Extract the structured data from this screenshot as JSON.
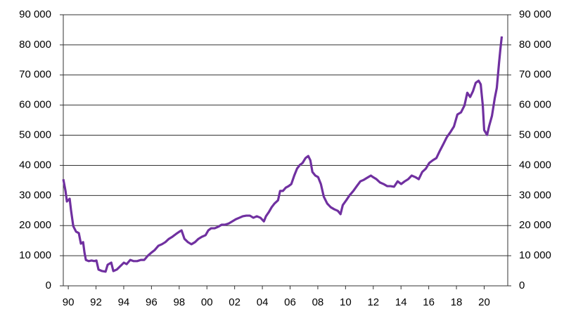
{
  "chart_data": {
    "type": "line",
    "x": [
      1989.64,
      1989.8,
      1989.9,
      1990.1,
      1990.2,
      1990.36,
      1990.56,
      1990.76,
      1990.91,
      1991.07,
      1991.17,
      1991.27,
      1991.47,
      1991.68,
      1991.88,
      1992.03,
      1992.18,
      1992.44,
      1992.69,
      1992.84,
      1993.1,
      1993.25,
      1993.5,
      1993.81,
      1994.01,
      1994.21,
      1994.47,
      1994.72,
      1994.97,
      1995.23,
      1995.48,
      1995.74,
      1995.99,
      1996.24,
      1996.5,
      1996.75,
      1997.0,
      1997.26,
      1997.51,
      1997.77,
      1998.02,
      1998.17,
      1998.38,
      1998.63,
      1998.88,
      1999.14,
      1999.39,
      1999.64,
      1999.9,
      2000.1,
      2000.3,
      2000.56,
      2000.81,
      2001.07,
      2001.32,
      2001.57,
      2001.83,
      2002.08,
      2002.34,
      2002.59,
      2002.84,
      2003.1,
      2003.35,
      2003.6,
      2003.86,
      2004.11,
      2004.26,
      2004.47,
      2004.67,
      2004.87,
      2005.13,
      2005.28,
      2005.48,
      2005.69,
      2005.89,
      2006.09,
      2006.3,
      2006.5,
      2006.7,
      2006.9,
      2007.11,
      2007.31,
      2007.46,
      2007.61,
      2007.82,
      2008.02,
      2008.22,
      2008.43,
      2008.68,
      2008.93,
      2009.19,
      2009.44,
      2009.64,
      2009.8,
      2010.05,
      2010.3,
      2010.56,
      2010.81,
      2011.07,
      2011.32,
      2011.57,
      2011.83,
      2011.98,
      2012.23,
      2012.49,
      2012.74,
      2013.0,
      2013.25,
      2013.5,
      2013.76,
      2014.01,
      2014.27,
      2014.52,
      2014.77,
      2015.03,
      2015.28,
      2015.53,
      2015.79,
      2016.04,
      2016.3,
      2016.55,
      2016.8,
      2017.06,
      2017.31,
      2017.56,
      2017.82,
      2018.07,
      2018.33,
      2018.58,
      2018.78,
      2018.99,
      2019.19,
      2019.39,
      2019.6,
      2019.75,
      2019.9,
      2020.0,
      2020.21,
      2020.36,
      2020.56,
      2020.76,
      2020.91,
      2021.07,
      2021.17,
      2021.27
    ],
    "series": [
      {
        "color": "#7030a0",
        "values": [
          35400,
          31500,
          28000,
          28900,
          25000,
          19800,
          18000,
          17500,
          14000,
          14500,
          11000,
          8600,
          8200,
          8400,
          8200,
          8400,
          5400,
          4900,
          4700,
          7000,
          7700,
          4900,
          5400,
          6800,
          7700,
          7200,
          8600,
          8200,
          8200,
          8600,
          8600,
          10000,
          11000,
          11900,
          13300,
          13800,
          14500,
          15600,
          16300,
          17200,
          18000,
          18400,
          15600,
          14500,
          13800,
          14500,
          15600,
          16300,
          16800,
          18400,
          19100,
          19100,
          19600,
          20300,
          20300,
          20700,
          21400,
          22100,
          22600,
          23100,
          23300,
          23300,
          22600,
          23100,
          22600,
          21400,
          23100,
          24500,
          26100,
          27300,
          28400,
          31500,
          31500,
          32600,
          33100,
          33800,
          36600,
          38900,
          40100,
          40800,
          42400,
          43100,
          41700,
          37800,
          36600,
          36100,
          33800,
          29600,
          27300,
          26100,
          25400,
          24900,
          23800,
          26800,
          28400,
          30100,
          31500,
          33100,
          34700,
          35200,
          35900,
          36600,
          36100,
          35400,
          34300,
          33800,
          33100,
          33100,
          32900,
          34700,
          33800,
          34700,
          35400,
          36600,
          36100,
          35400,
          37800,
          38900,
          40800,
          41700,
          42400,
          44800,
          47100,
          49400,
          51000,
          52900,
          56900,
          57600,
          59900,
          64100,
          62700,
          64600,
          67400,
          68100,
          66900,
          59900,
          51700,
          50100,
          53100,
          56400,
          62200,
          65700,
          73900,
          78600,
          82800
        ]
      }
    ],
    "xlim": [
      1989.64,
      2021.7
    ],
    "xticks": [
      {
        "value": 1990,
        "label": "90"
      },
      {
        "value": 1992,
        "label": "92"
      },
      {
        "value": 1994,
        "label": "94"
      },
      {
        "value": 1996,
        "label": "96"
      },
      {
        "value": 1998,
        "label": "98"
      },
      {
        "value": 2000,
        "label": "00"
      },
      {
        "value": 2002,
        "label": "02"
      },
      {
        "value": 2004,
        "label": "04"
      },
      {
        "value": 2006,
        "label": "06"
      },
      {
        "value": 2008,
        "label": "08"
      },
      {
        "value": 2010,
        "label": "10"
      },
      {
        "value": 2012,
        "label": "12"
      },
      {
        "value": 2014,
        "label": "14"
      },
      {
        "value": 2016,
        "label": "16"
      },
      {
        "value": 2018,
        "label": "18"
      },
      {
        "value": 2020,
        "label": "20"
      }
    ],
    "ylim": [
      0,
      90000
    ],
    "yticks": [
      0,
      {
        "value": 10000,
        "label": "10 000"
      },
      {
        "value": 20000,
        "label": "20 000"
      },
      {
        "value": 30000,
        "label": "30 000"
      },
      {
        "value": 40000,
        "label": "40 000"
      },
      {
        "value": 50000,
        "label": "50 000"
      },
      {
        "value": 60000,
        "label": "60 000"
      },
      {
        "value": 70000,
        "label": "70 000"
      },
      {
        "value": 80000,
        "label": "80 000"
      },
      {
        "value": 90000,
        "label": "90 000"
      }
    ],
    "y2lim": [
      0,
      90000
    ],
    "y2ticks": [
      0,
      {
        "value": 10000,
        "label": "10 000"
      },
      {
        "value": 20000,
        "label": "20 000"
      },
      {
        "value": 30000,
        "label": "30 000"
      },
      {
        "value": 40000,
        "label": "40 000"
      },
      {
        "value": 50000,
        "label": "50 000"
      },
      {
        "value": 60000,
        "label": "60 000"
      },
      {
        "value": 70000,
        "label": "70 000"
      },
      {
        "value": 80000,
        "label": "80 000"
      },
      {
        "value": 90000,
        "label": "90 000"
      }
    ],
    "grid": true
  }
}
